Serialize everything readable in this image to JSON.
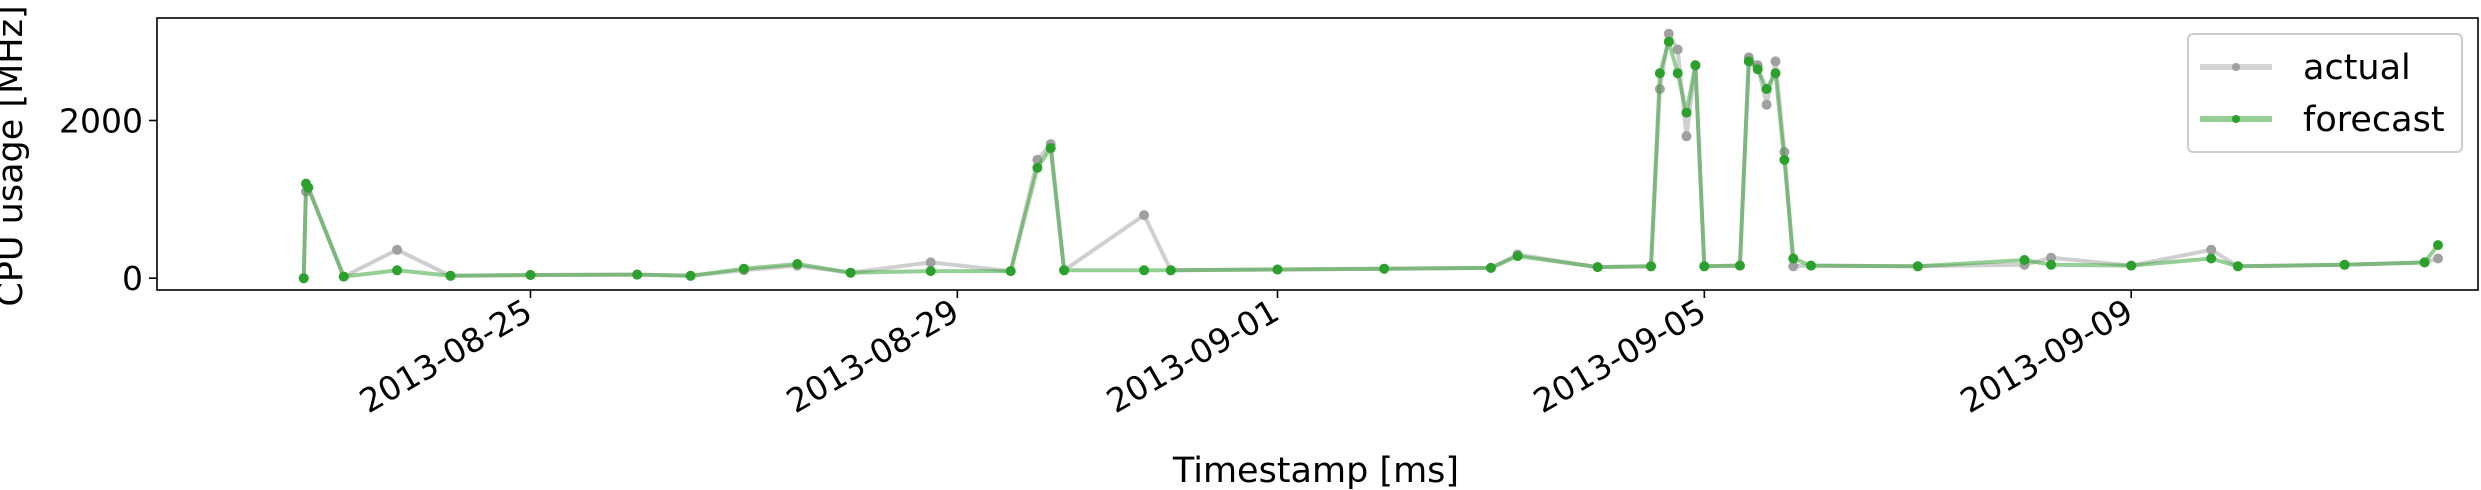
{
  "chart_data": {
    "type": "line",
    "title": "",
    "xlabel": "Timestamp [ms]",
    "ylabel": "CPU usage [MHz]",
    "x_scale": "date",
    "xlim": [
      "2013-08-21T12:00",
      "2013-09-12T06:00"
    ],
    "ylim": [
      -150,
      3300
    ],
    "x_ticks": [
      "2013-08-25",
      "2013-08-29",
      "2013-09-01",
      "2013-09-05",
      "2013-09-09"
    ],
    "y_ticks": [
      0,
      2000
    ],
    "grid": false,
    "legend_position": "top-right",
    "series": [
      {
        "name": "actual",
        "color": "#a0a0a0",
        "points": [
          [
            "2013-08-22T21:00",
            0
          ],
          [
            "2013-08-22T21:30",
            1100
          ],
          [
            "2013-08-22T22:00",
            1150
          ],
          [
            "2013-08-23T06:00",
            20
          ],
          [
            "2013-08-23T18:00",
            360
          ],
          [
            "2013-08-24T06:00",
            30
          ],
          [
            "2013-08-25T00:00",
            40
          ],
          [
            "2013-08-26T00:00",
            45
          ],
          [
            "2013-08-26T12:00",
            30
          ],
          [
            "2013-08-27T00:00",
            100
          ],
          [
            "2013-08-27T12:00",
            160
          ],
          [
            "2013-08-28T00:00",
            70
          ],
          [
            "2013-08-28T18:00",
            200
          ],
          [
            "2013-08-29T12:00",
            90
          ],
          [
            "2013-08-29T18:00",
            1500
          ],
          [
            "2013-08-29T21:00",
            1700
          ],
          [
            "2013-08-30T00:00",
            100
          ],
          [
            "2013-08-30T18:00",
            800
          ],
          [
            "2013-08-31T00:00",
            100
          ],
          [
            "2013-09-01T00:00",
            110
          ],
          [
            "2013-09-02T00:00",
            120
          ],
          [
            "2013-09-03T00:00",
            130
          ],
          [
            "2013-09-03T06:00",
            300
          ],
          [
            "2013-09-04T00:00",
            140
          ],
          [
            "2013-09-04T12:00",
            150
          ],
          [
            "2013-09-04T14:00",
            2400
          ],
          [
            "2013-09-04T16:00",
            3100
          ],
          [
            "2013-09-04T18:00",
            2900
          ],
          [
            "2013-09-04T20:00",
            1800
          ],
          [
            "2013-09-04T22:00",
            2700
          ],
          [
            "2013-09-05T00:00",
            150
          ],
          [
            "2013-09-05T08:00",
            160
          ],
          [
            "2013-09-05T10:00",
            2800
          ],
          [
            "2013-09-05T12:00",
            2700
          ],
          [
            "2013-09-05T14:00",
            2200
          ],
          [
            "2013-09-05T16:00",
            2750
          ],
          [
            "2013-09-05T18:00",
            1600
          ],
          [
            "2013-09-05T20:00",
            150
          ],
          [
            "2013-09-06T00:00",
            160
          ],
          [
            "2013-09-07T00:00",
            150
          ],
          [
            "2013-09-08T00:00",
            170
          ],
          [
            "2013-09-08T06:00",
            260
          ],
          [
            "2013-09-09T00:00",
            160
          ],
          [
            "2013-09-09T18:00",
            360
          ],
          [
            "2013-09-10T00:00",
            150
          ],
          [
            "2013-09-11T00:00",
            170
          ],
          [
            "2013-09-11T18:00",
            200
          ],
          [
            "2013-09-11T21:00",
            250
          ]
        ]
      },
      {
        "name": "forecast",
        "color": "#2ca02c",
        "points": [
          [
            "2013-08-22T21:00",
            0
          ],
          [
            "2013-08-22T21:30",
            1200
          ],
          [
            "2013-08-22T22:00",
            1150
          ],
          [
            "2013-08-23T06:00",
            20
          ],
          [
            "2013-08-23T18:00",
            100
          ],
          [
            "2013-08-24T06:00",
            30
          ],
          [
            "2013-08-25T00:00",
            40
          ],
          [
            "2013-08-26T00:00",
            45
          ],
          [
            "2013-08-26T12:00",
            30
          ],
          [
            "2013-08-27T00:00",
            120
          ],
          [
            "2013-08-27T12:00",
            180
          ],
          [
            "2013-08-28T00:00",
            70
          ],
          [
            "2013-08-28T18:00",
            90
          ],
          [
            "2013-08-29T12:00",
            90
          ],
          [
            "2013-08-29T18:00",
            1400
          ],
          [
            "2013-08-29T21:00",
            1650
          ],
          [
            "2013-08-30T00:00",
            100
          ],
          [
            "2013-08-30T18:00",
            100
          ],
          [
            "2013-08-31T00:00",
            100
          ],
          [
            "2013-09-01T00:00",
            110
          ],
          [
            "2013-09-02T00:00",
            120
          ],
          [
            "2013-09-03T00:00",
            130
          ],
          [
            "2013-09-03T06:00",
            280
          ],
          [
            "2013-09-04T00:00",
            140
          ],
          [
            "2013-09-04T12:00",
            150
          ],
          [
            "2013-09-04T14:00",
            2600
          ],
          [
            "2013-09-04T16:00",
            3000
          ],
          [
            "2013-09-04T18:00",
            2600
          ],
          [
            "2013-09-04T20:00",
            2100
          ],
          [
            "2013-09-04T22:00",
            2700
          ],
          [
            "2013-09-05T00:00",
            150
          ],
          [
            "2013-09-05T08:00",
            160
          ],
          [
            "2013-09-05T10:00",
            2750
          ],
          [
            "2013-09-05T12:00",
            2650
          ],
          [
            "2013-09-05T14:00",
            2400
          ],
          [
            "2013-09-05T16:00",
            2600
          ],
          [
            "2013-09-05T18:00",
            1500
          ],
          [
            "2013-09-05T20:00",
            250
          ],
          [
            "2013-09-06T00:00",
            160
          ],
          [
            "2013-09-07T00:00",
            150
          ],
          [
            "2013-09-08T00:00",
            230
          ],
          [
            "2013-09-08T06:00",
            170
          ],
          [
            "2013-09-09T00:00",
            160
          ],
          [
            "2013-09-09T18:00",
            250
          ],
          [
            "2013-09-10T00:00",
            150
          ],
          [
            "2013-09-11T00:00",
            170
          ],
          [
            "2013-09-11T18:00",
            200
          ],
          [
            "2013-09-11T21:00",
            420
          ]
        ]
      }
    ]
  }
}
